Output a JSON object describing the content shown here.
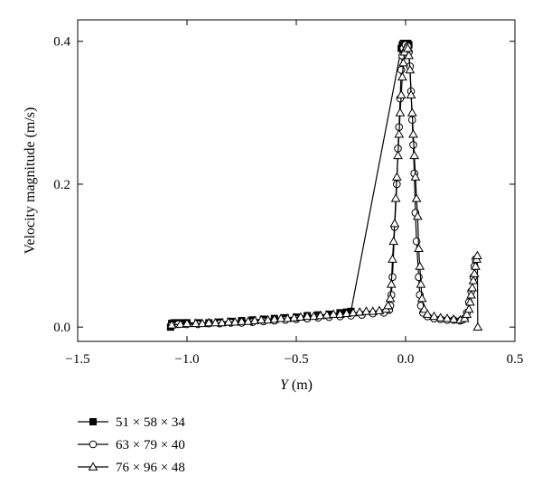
{
  "chart_data": {
    "type": "line",
    "title": "",
    "xlabel": "Y (m)",
    "xlabel_italic_part": "Y",
    "xlabel_rest": " (m)",
    "ylabel": "Velocity magnitude (m/s)",
    "xlim": [
      -1.5,
      0.5
    ],
    "ylim": [
      -0.02,
      0.43
    ],
    "xticks": [
      -1.5,
      -1.0,
      -0.5,
      0.0,
      0.5
    ],
    "xtick_labels": [
      "−1.5",
      "−1.0",
      "−0.5",
      "0.0",
      "0.5"
    ],
    "yticks": [
      0.0,
      0.2,
      0.4
    ],
    "ytick_labels": [
      "0.0",
      "0.2",
      "0.4"
    ],
    "grid": false,
    "legend_position": "bottom-left",
    "series": [
      {
        "name": "51 × 58 × 34",
        "marker": "filled-square",
        "points": [
          [
            -1.075,
            0.0
          ],
          [
            -1.07,
            0.005
          ],
          [
            -1.06,
            0.006
          ],
          [
            -1.04,
            0.006
          ],
          [
            -1.02,
            0.006
          ],
          [
            -1.0,
            0.006
          ],
          [
            -0.95,
            0.006
          ],
          [
            -0.9,
            0.006
          ],
          [
            -0.85,
            0.007
          ],
          [
            -0.8,
            0.008
          ],
          [
            -0.75,
            0.009
          ],
          [
            -0.7,
            0.01
          ],
          [
            -0.65,
            0.011
          ],
          [
            -0.6,
            0.012
          ],
          [
            -0.55,
            0.013
          ],
          [
            -0.5,
            0.014
          ],
          [
            -0.45,
            0.016
          ],
          [
            -0.4,
            0.017
          ],
          [
            -0.35,
            0.018
          ],
          [
            -0.3,
            0.02
          ],
          [
            -0.27,
            0.021
          ],
          [
            -0.25,
            0.022
          ],
          [
            -0.02,
            0.39
          ],
          [
            -0.015,
            0.395
          ],
          [
            -0.01,
            0.397
          ],
          [
            -0.005,
            0.397
          ],
          [
            0.0,
            0.397
          ],
          [
            0.005,
            0.397
          ],
          [
            0.01,
            0.397
          ],
          [
            0.015,
            0.395
          ]
        ]
      },
      {
        "name": "63 × 79 × 40",
        "marker": "open-circle",
        "points": [
          [
            -1.07,
            0.003
          ],
          [
            -1.04,
            0.004
          ],
          [
            -1.0,
            0.004
          ],
          [
            -0.95,
            0.004
          ],
          [
            -0.9,
            0.005
          ],
          [
            -0.85,
            0.005
          ],
          [
            -0.8,
            0.006
          ],
          [
            -0.75,
            0.006
          ],
          [
            -0.7,
            0.007
          ],
          [
            -0.65,
            0.008
          ],
          [
            -0.6,
            0.009
          ],
          [
            -0.55,
            0.01
          ],
          [
            -0.5,
            0.011
          ],
          [
            -0.45,
            0.012
          ],
          [
            -0.4,
            0.013
          ],
          [
            -0.35,
            0.014
          ],
          [
            -0.3,
            0.015
          ],
          [
            -0.25,
            0.016
          ],
          [
            -0.2,
            0.017
          ],
          [
            -0.15,
            0.019
          ],
          [
            -0.1,
            0.02
          ],
          [
            -0.075,
            0.024
          ],
          [
            -0.07,
            0.03
          ],
          [
            -0.065,
            0.045
          ],
          [
            -0.06,
            0.07
          ],
          [
            -0.05,
            0.14
          ],
          [
            -0.04,
            0.2
          ],
          [
            -0.035,
            0.25
          ],
          [
            -0.03,
            0.28
          ],
          [
            -0.025,
            0.32
          ],
          [
            -0.02,
            0.36
          ],
          [
            -0.015,
            0.38
          ],
          [
            -0.01,
            0.39
          ],
          [
            0.0,
            0.395
          ],
          [
            0.01,
            0.393
          ],
          [
            0.015,
            0.385
          ],
          [
            0.02,
            0.365
          ],
          [
            0.025,
            0.33
          ],
          [
            0.03,
            0.29
          ],
          [
            0.035,
            0.255
          ],
          [
            0.04,
            0.215
          ],
          [
            0.045,
            0.16
          ],
          [
            0.05,
            0.12
          ],
          [
            0.06,
            0.07
          ],
          [
            0.065,
            0.045
          ],
          [
            0.07,
            0.03
          ],
          [
            0.08,
            0.02
          ],
          [
            0.1,
            0.015
          ],
          [
            0.13,
            0.012
          ],
          [
            0.16,
            0.011
          ],
          [
            0.19,
            0.01
          ],
          [
            0.22,
            0.01
          ],
          [
            0.25,
            0.009
          ],
          [
            0.27,
            0.012
          ],
          [
            0.28,
            0.02
          ],
          [
            0.29,
            0.035
          ],
          [
            0.3,
            0.05
          ],
          [
            0.31,
            0.07
          ],
          [
            0.315,
            0.085
          ],
          [
            0.32,
            0.095
          ]
        ]
      },
      {
        "name": "76 × 96 × 48",
        "marker": "open-triangle",
        "points": [
          [
            -1.07,
            0.003
          ],
          [
            -1.03,
            0.004
          ],
          [
            -1.0,
            0.005
          ],
          [
            -0.96,
            0.005
          ],
          [
            -0.93,
            0.005
          ],
          [
            -0.9,
            0.006
          ],
          [
            -0.87,
            0.006
          ],
          [
            -0.84,
            0.006
          ],
          [
            -0.81,
            0.007
          ],
          [
            -0.78,
            0.007
          ],
          [
            -0.75,
            0.008
          ],
          [
            -0.72,
            0.008
          ],
          [
            -0.69,
            0.009
          ],
          [
            -0.66,
            0.01
          ],
          [
            -0.63,
            0.01
          ],
          [
            -0.6,
            0.011
          ],
          [
            -0.57,
            0.012
          ],
          [
            -0.54,
            0.012
          ],
          [
            -0.51,
            0.013
          ],
          [
            -0.48,
            0.014
          ],
          [
            -0.45,
            0.015
          ],
          [
            -0.42,
            0.015
          ],
          [
            -0.39,
            0.016
          ],
          [
            -0.36,
            0.017
          ],
          [
            -0.33,
            0.018
          ],
          [
            -0.3,
            0.018
          ],
          [
            -0.27,
            0.019
          ],
          [
            -0.24,
            0.02
          ],
          [
            -0.21,
            0.021
          ],
          [
            -0.18,
            0.022
          ],
          [
            -0.15,
            0.022
          ],
          [
            -0.12,
            0.023
          ],
          [
            -0.09,
            0.025
          ],
          [
            -0.08,
            0.03
          ],
          [
            -0.07,
            0.04
          ],
          [
            -0.065,
            0.06
          ],
          [
            -0.06,
            0.095
          ],
          [
            -0.055,
            0.12
          ],
          [
            -0.05,
            0.145
          ],
          [
            -0.045,
            0.18
          ],
          [
            -0.04,
            0.21
          ],
          [
            -0.035,
            0.24
          ],
          [
            -0.03,
            0.27
          ],
          [
            -0.025,
            0.3
          ],
          [
            -0.02,
            0.325
          ],
          [
            -0.015,
            0.35
          ],
          [
            -0.01,
            0.37
          ],
          [
            -0.005,
            0.385
          ],
          [
            0.0,
            0.39
          ],
          [
            0.005,
            0.392
          ],
          [
            0.01,
            0.39
          ],
          [
            0.015,
            0.38
          ],
          [
            0.02,
            0.36
          ],
          [
            0.025,
            0.325
          ],
          [
            0.03,
            0.3
          ],
          [
            0.035,
            0.27
          ],
          [
            0.04,
            0.24
          ],
          [
            0.045,
            0.21
          ],
          [
            0.05,
            0.18
          ],
          [
            0.055,
            0.155
          ],
          [
            0.06,
            0.11
          ],
          [
            0.065,
            0.085
          ],
          [
            0.07,
            0.06
          ],
          [
            0.075,
            0.04
          ],
          [
            0.085,
            0.025
          ],
          [
            0.1,
            0.018
          ],
          [
            0.13,
            0.015
          ],
          [
            0.16,
            0.013
          ],
          [
            0.19,
            0.012
          ],
          [
            0.22,
            0.011
          ],
          [
            0.25,
            0.01
          ],
          [
            0.27,
            0.012
          ],
          [
            0.28,
            0.018
          ],
          [
            0.29,
            0.025
          ],
          [
            0.295,
            0.035
          ],
          [
            0.3,
            0.045
          ],
          [
            0.305,
            0.055
          ],
          [
            0.31,
            0.065
          ],
          [
            0.315,
            0.075
          ],
          [
            0.32,
            0.085
          ],
          [
            0.325,
            0.095
          ],
          [
            0.328,
            0.1
          ],
          [
            0.33,
            0.0
          ]
        ]
      }
    ]
  }
}
